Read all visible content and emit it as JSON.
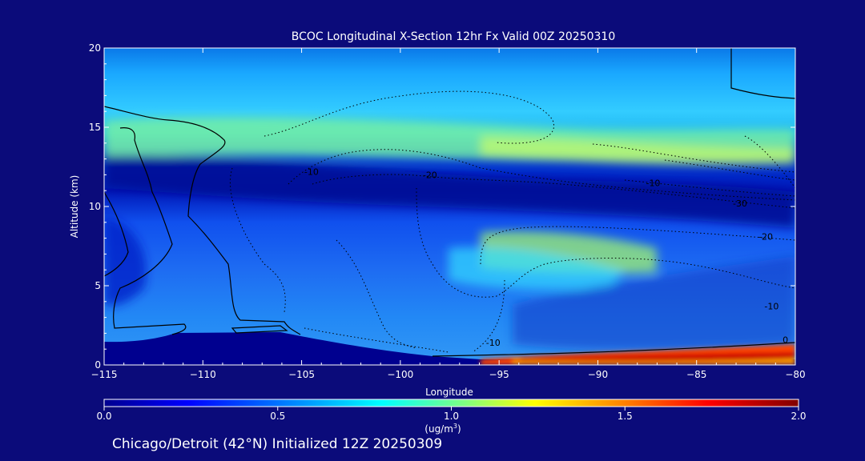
{
  "chart_data": {
    "type": "heatmap",
    "title": "BCOC Longitudinal X-Section 12hr  Fx Valid 00Z 20250310",
    "xlabel": "Longitude",
    "ylabel": "Altitude (km)",
    "xlim": [
      -115,
      -80
    ],
    "ylim": [
      0,
      20
    ],
    "x_ticks": [
      -115,
      -110,
      -105,
      -100,
      -95,
      -90,
      -85,
      -80
    ],
    "y_ticks": [
      0,
      5,
      10,
      15,
      20
    ],
    "colorbar": {
      "min": 0.0,
      "max": 2.0,
      "ticks": [
        0.0,
        0.5,
        1.0,
        1.5,
        2.0
      ],
      "tick_labels": [
        "0.0",
        "0.5",
        "1.0",
        "1.5",
        "2.0"
      ],
      "units_line1": "(ug/m",
      "units_sup": "3",
      "units_line2": ")",
      "colormap": [
        "#00008f",
        "#0000ff",
        "#00a0ff",
        "#00ffff",
        "#80ff80",
        "#ffff00",
        "#ff8000",
        "#ff0000",
        "#800000"
      ]
    },
    "temperature_contour_labels": [
      {
        "text": "-10",
        "lon": -104.5,
        "alt": 12.0
      },
      {
        "text": "-20",
        "lon": -98.5,
        "alt": 11.8
      },
      {
        "text": "-10",
        "lon": -87.2,
        "alt": 11.3
      },
      {
        "text": "-30",
        "lon": -82.8,
        "alt": 10.0
      },
      {
        "text": "-20",
        "lon": -81.5,
        "alt": 7.9
      },
      {
        "text": "-10",
        "lon": -81.2,
        "alt": 3.5
      },
      {
        "text": "-10",
        "lon": -95.3,
        "alt": 1.2
      },
      {
        "text": "0",
        "lon": -80.5,
        "alt": 1.4
      }
    ],
    "grid": false,
    "legend": "none"
  },
  "footer": {
    "caption": "Chicago/Detroit (42°N) Initialized 12Z 20250309"
  }
}
